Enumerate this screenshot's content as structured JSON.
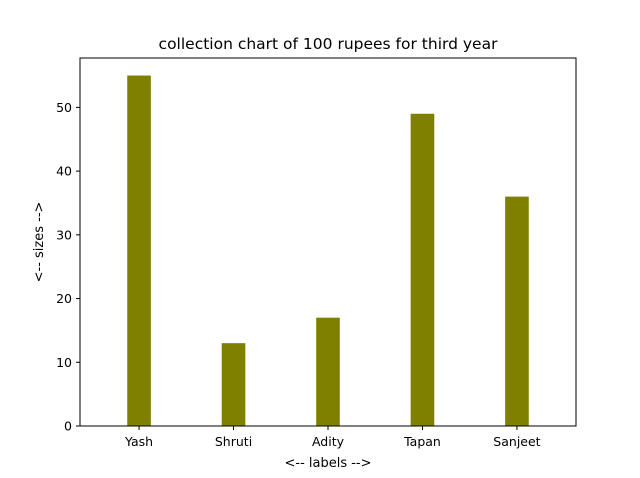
{
  "chart_data": {
    "type": "bar",
    "title": "collection chart of 100 rupees for third year",
    "xlabel": "<-- labels -->",
    "ylabel": "<-- sizes -->",
    "categories": [
      "Yash",
      "Shruti",
      "Adity",
      "Tapan",
      "Sanjeet"
    ],
    "values": [
      55,
      13,
      17,
      49,
      36
    ],
    "ylim": [
      0,
      57.75
    ],
    "yticks": [
      0,
      10,
      20,
      30,
      40,
      50
    ],
    "bar_color": "#808000",
    "grid": false,
    "legend": "none"
  }
}
